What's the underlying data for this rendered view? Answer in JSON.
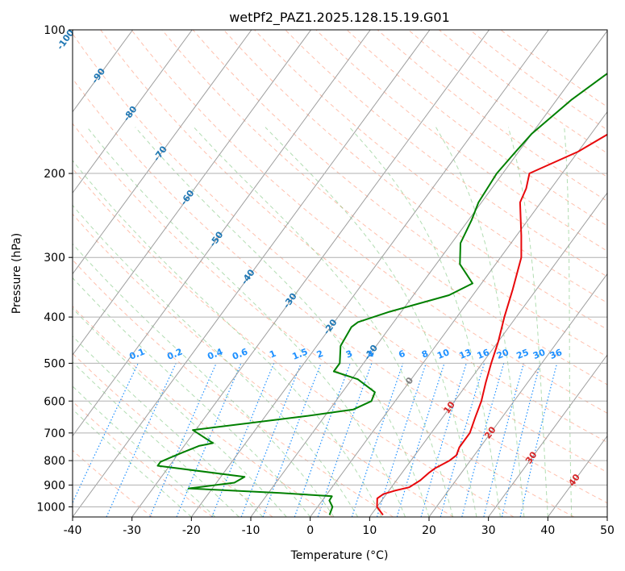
{
  "chart_data": {
    "type": "line",
    "title": "wetPf2_PAZ1.2025.128.15.19.G01",
    "xlabel": "Temperature (°C)",
    "ylabel": "Pressure (hPa)",
    "xlim": [
      -40,
      50
    ],
    "ylim": [
      1050,
      100
    ],
    "y_scale": "log",
    "grid": true,
    "x_ticks": [
      -40,
      -30,
      -20,
      -10,
      0,
      10,
      20,
      30,
      40,
      50
    ],
    "y_ticks": [
      100,
      200,
      300,
      400,
      500,
      600,
      700,
      800,
      900,
      1000
    ],
    "isotherm_labels": [
      "-100",
      "-90",
      "-80",
      "-70",
      "-60",
      "-50",
      "-40",
      "-30",
      "-20",
      "-10",
      "0",
      "10",
      "20",
      "30",
      "40"
    ],
    "mixing_ratio_labels": [
      "0.1",
      "0.2",
      "0.4",
      "0.6",
      "1",
      "1.5",
      "2",
      "3",
      "4",
      "6",
      "8",
      "10",
      "13",
      "16",
      "20",
      "25",
      "30",
      "36"
    ],
    "colors": {
      "temperature": "#e8080b",
      "dewpoint": "#008000",
      "isotherm_label_cold": "#1f77b4",
      "isotherm_label_warm": "#d62728",
      "isotherm_label_zero": "#7f7f7f",
      "mixing_ratio": "#1e90ff",
      "dry_adiabat": "#ff8c69",
      "moist_adiabat": "#66bb66"
    },
    "series": [
      {
        "name": "",
        "role": "temperature",
        "points": [
          [
            12,
            1040
          ],
          [
            10,
            1000
          ],
          [
            9,
            960
          ],
          [
            9.5,
            940
          ],
          [
            11,
            925
          ],
          [
            13,
            910
          ],
          [
            14,
            880
          ],
          [
            14.5,
            850
          ],
          [
            15,
            830
          ],
          [
            16.5,
            800
          ],
          [
            17,
            780
          ],
          [
            16.5,
            750
          ],
          [
            16.5,
            700
          ],
          [
            15.5,
            650
          ],
          [
            14.5,
            600
          ],
          [
            13,
            550
          ],
          [
            11.5,
            500
          ],
          [
            10,
            450
          ],
          [
            8,
            400
          ],
          [
            6,
            350
          ],
          [
            3.5,
            300
          ],
          [
            0.8,
            270
          ],
          [
            -3.5,
            230
          ],
          [
            -4.2,
            215
          ],
          [
            -5.5,
            200
          ],
          [
            0,
            180
          ],
          [
            4,
            160
          ],
          [
            8,
            150
          ],
          [
            9.5,
            140
          ],
          [
            11,
            130
          ],
          [
            14,
            115
          ],
          [
            16,
            105
          ],
          [
            17.5,
            100
          ]
        ]
      },
      {
        "name": "",
        "role": "dewpoint",
        "points": [
          [
            3,
            1040
          ],
          [
            2.5,
            1000
          ],
          [
            1.2,
            970
          ],
          [
            1.1,
            950
          ],
          [
            -8,
            935
          ],
          [
            -24,
            915
          ],
          [
            -17,
            890
          ],
          [
            -16,
            865
          ],
          [
            -32,
            820
          ],
          [
            -32,
            805
          ],
          [
            -31,
            790
          ],
          [
            -29.5,
            770
          ],
          [
            -27.5,
            745
          ],
          [
            -25.5,
            735
          ],
          [
            -30.5,
            690
          ],
          [
            -13,
            645
          ],
          [
            -6,
            625
          ],
          [
            -4,
            600
          ],
          [
            -4.5,
            575
          ],
          [
            -9,
            540
          ],
          [
            -14,
            520
          ],
          [
            -14,
            500
          ],
          [
            -16,
            460
          ],
          [
            -16.5,
            420
          ],
          [
            -16,
            410
          ],
          [
            -12,
            390
          ],
          [
            -4,
            360
          ],
          [
            -1.5,
            340
          ],
          [
            -6,
            310
          ],
          [
            -8.5,
            280
          ],
          [
            -9.5,
            250
          ],
          [
            -10.5,
            230
          ],
          [
            -11,
            200
          ],
          [
            -10.5,
            180
          ],
          [
            -10,
            165
          ],
          [
            -7.5,
            140
          ],
          [
            -5,
            125
          ],
          [
            -2,
            110
          ],
          [
            0,
            100
          ]
        ]
      }
    ]
  }
}
